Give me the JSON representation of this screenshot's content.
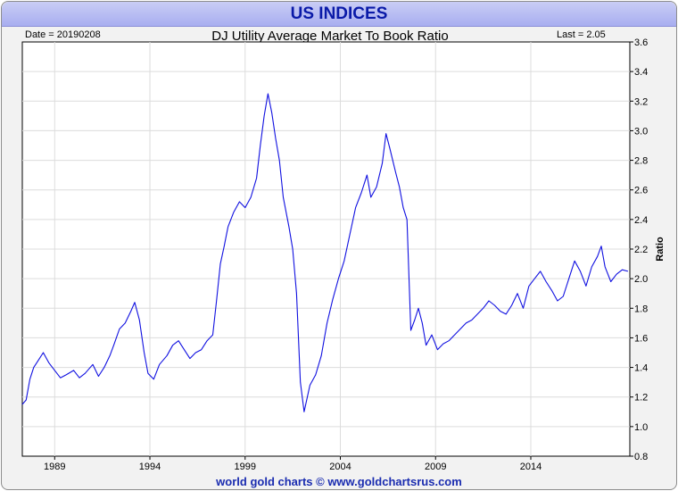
{
  "banner": {
    "title": "US INDICES"
  },
  "header": {
    "date_label": "Date = 20190208",
    "chart_title": "DJ Utility Average Market To Book Ratio",
    "last_label": "Last = 2.05"
  },
  "footer": {
    "credit": "world gold charts © www.goldchartsrus.com"
  },
  "colors": {
    "line": "#1010e0",
    "grid": "#dcdcdc",
    "frame": "#f2f2f2",
    "banner": "#b4b9f2",
    "title_text": "#0a1aa8"
  },
  "chart_data": {
    "type": "line",
    "title": "DJ Utility Average Market To Book Ratio",
    "xlabel": "",
    "ylabel": "Ratio",
    "xlim": [
      1987.3,
      2019.2
    ],
    "ylim": [
      0.8,
      3.6
    ],
    "x_ticks": [
      1989,
      1994,
      1999,
      2004,
      2009,
      2014
    ],
    "y_ticks": [
      0.8,
      1.0,
      1.2,
      1.4,
      1.6,
      1.8,
      2.0,
      2.2,
      2.4,
      2.6,
      2.8,
      3.0,
      3.2,
      3.4,
      3.6
    ],
    "grid": true,
    "series": [
      {
        "values": [
          [
            1987.3,
            1.15
          ],
          [
            1987.5,
            1.18
          ],
          [
            1987.7,
            1.32
          ],
          [
            1987.9,
            1.4
          ],
          [
            1988.1,
            1.44
          ],
          [
            1988.4,
            1.5
          ],
          [
            1988.7,
            1.43
          ],
          [
            1989.0,
            1.38
          ],
          [
            1989.3,
            1.33
          ],
          [
            1989.6,
            1.35
          ],
          [
            1990.0,
            1.38
          ],
          [
            1990.3,
            1.33
          ],
          [
            1990.6,
            1.36
          ],
          [
            1991.0,
            1.42
          ],
          [
            1991.3,
            1.34
          ],
          [
            1991.6,
            1.4
          ],
          [
            1991.9,
            1.48
          ],
          [
            1992.1,
            1.55
          ],
          [
            1992.4,
            1.66
          ],
          [
            1992.7,
            1.7
          ],
          [
            1993.0,
            1.78
          ],
          [
            1993.2,
            1.84
          ],
          [
            1993.45,
            1.72
          ],
          [
            1993.7,
            1.5
          ],
          [
            1993.9,
            1.36
          ],
          [
            1994.2,
            1.32
          ],
          [
            1994.5,
            1.42
          ],
          [
            1994.9,
            1.48
          ],
          [
            1995.2,
            1.55
          ],
          [
            1995.5,
            1.58
          ],
          [
            1995.8,
            1.52
          ],
          [
            1996.1,
            1.46
          ],
          [
            1996.4,
            1.5
          ],
          [
            1996.7,
            1.52
          ],
          [
            1997.0,
            1.58
          ],
          [
            1997.3,
            1.62
          ],
          [
            1997.5,
            1.85
          ],
          [
            1997.7,
            2.1
          ],
          [
            1997.9,
            2.22
          ],
          [
            1998.1,
            2.35
          ],
          [
            1998.4,
            2.45
          ],
          [
            1998.7,
            2.52
          ],
          [
            1999.0,
            2.48
          ],
          [
            1999.3,
            2.55
          ],
          [
            1999.6,
            2.68
          ],
          [
            1999.8,
            2.9
          ],
          [
            2000.0,
            3.1
          ],
          [
            2000.2,
            3.25
          ],
          [
            2000.4,
            3.12
          ],
          [
            2000.6,
            2.95
          ],
          [
            2000.8,
            2.8
          ],
          [
            2001.0,
            2.55
          ],
          [
            2001.3,
            2.35
          ],
          [
            2001.5,
            2.2
          ],
          [
            2001.7,
            1.9
          ],
          [
            2001.9,
            1.3
          ],
          [
            2002.1,
            1.1
          ],
          [
            2002.4,
            1.28
          ],
          [
            2002.7,
            1.35
          ],
          [
            2003.0,
            1.48
          ],
          [
            2003.3,
            1.7
          ],
          [
            2003.6,
            1.86
          ],
          [
            2003.9,
            2.0
          ],
          [
            2004.2,
            2.12
          ],
          [
            2004.5,
            2.3
          ],
          [
            2004.8,
            2.48
          ],
          [
            2005.1,
            2.58
          ],
          [
            2005.4,
            2.7
          ],
          [
            2005.6,
            2.55
          ],
          [
            2005.9,
            2.62
          ],
          [
            2006.2,
            2.78
          ],
          [
            2006.4,
            2.98
          ],
          [
            2006.6,
            2.88
          ],
          [
            2006.9,
            2.72
          ],
          [
            2007.1,
            2.62
          ],
          [
            2007.3,
            2.48
          ],
          [
            2007.5,
            2.4
          ],
          [
            2007.7,
            1.65
          ],
          [
            2007.9,
            1.72
          ],
          [
            2008.1,
            1.8
          ],
          [
            2008.3,
            1.7
          ],
          [
            2008.5,
            1.55
          ],
          [
            2008.8,
            1.62
          ],
          [
            2009.1,
            1.52
          ],
          [
            2009.4,
            1.56
          ],
          [
            2009.7,
            1.58
          ],
          [
            2010.0,
            1.62
          ],
          [
            2010.3,
            1.66
          ],
          [
            2010.6,
            1.7
          ],
          [
            2010.9,
            1.72
          ],
          [
            2011.2,
            1.76
          ],
          [
            2011.5,
            1.8
          ],
          [
            2011.8,
            1.85
          ],
          [
            2012.1,
            1.82
          ],
          [
            2012.4,
            1.78
          ],
          [
            2012.7,
            1.76
          ],
          [
            2013.0,
            1.82
          ],
          [
            2013.3,
            1.9
          ],
          [
            2013.6,
            1.8
          ],
          [
            2013.9,
            1.95
          ],
          [
            2014.2,
            2.0
          ],
          [
            2014.5,
            2.05
          ],
          [
            2014.8,
            1.98
          ],
          [
            2015.1,
            1.92
          ],
          [
            2015.4,
            1.85
          ],
          [
            2015.7,
            1.88
          ],
          [
            2016.0,
            2.0
          ],
          [
            2016.3,
            2.12
          ],
          [
            2016.6,
            2.05
          ],
          [
            2016.9,
            1.95
          ],
          [
            2017.2,
            2.08
          ],
          [
            2017.5,
            2.15
          ],
          [
            2017.7,
            2.22
          ],
          [
            2017.9,
            2.08
          ],
          [
            2018.2,
            1.98
          ],
          [
            2018.5,
            2.03
          ],
          [
            2018.8,
            2.06
          ],
          [
            2019.1,
            2.05
          ]
        ]
      }
    ]
  }
}
